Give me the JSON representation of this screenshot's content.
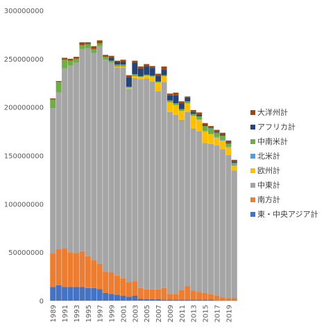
{
  "chart_data": {
    "type": "bar",
    "stacked": true,
    "title": "",
    "xlabel": "",
    "ylabel": "",
    "ylim": [
      0,
      300000000
    ],
    "yticks": [
      "0",
      "50000000",
      "100000000",
      "150000000",
      "200000000",
      "250000000",
      "300000000"
    ],
    "ytick_values": [
      0,
      50000000,
      100000000,
      150000000,
      200000000,
      250000000,
      300000000
    ],
    "grid": false,
    "legend_position": "right",
    "x": [
      1989,
      1990,
      1991,
      1992,
      1993,
      1994,
      1995,
      1996,
      1997,
      1998,
      1999,
      2000,
      2001,
      2002,
      2003,
      2004,
      2005,
      2006,
      2007,
      2008,
      2009,
      2010,
      2011,
      2012,
      2013,
      2014,
      2015,
      2016,
      2017,
      2018,
      2019,
      2020
    ],
    "xtick_labels": [
      "1989",
      "1991",
      "1993",
      "1995",
      "1997",
      "1999",
      "2001",
      "2003",
      "2005",
      "2007",
      "2009",
      "2011",
      "2013",
      "2015",
      "2017",
      "2019"
    ],
    "series": [
      {
        "name": "東・中央アジア計",
        "color": "#4472c4",
        "values": [
          14000000,
          16000000,
          14000000,
          14000000,
          14000000,
          14000000,
          13000000,
          13000000,
          12000000,
          8000000,
          7000000,
          6000000,
          5000000,
          4000000,
          5000000,
          2000000,
          1500000,
          1500000,
          1500000,
          1000000,
          1000000,
          1000000,
          1000000,
          1000000,
          1000000,
          1000000,
          1000000,
          1000000,
          500000,
          500000,
          500000,
          500000
        ]
      },
      {
        "name": "南方計",
        "color": "#ed7d31",
        "values": [
          35000000,
          37000000,
          40000000,
          36000000,
          35000000,
          37000000,
          33000000,
          29000000,
          26000000,
          22000000,
          22000000,
          20000000,
          18000000,
          15000000,
          15000000,
          11000000,
          10000000,
          10000000,
          10000000,
          12000000,
          6000000,
          6000000,
          10000000,
          14000000,
          9000000,
          8000000,
          7000000,
          6000000,
          5000000,
          3000000,
          2000000,
          2000000
        ]
      },
      {
        "name": "中東計",
        "color": "#a5a5a5",
        "values": [
          150000000,
          162000000,
          186000000,
          193000000,
          197000000,
          209000000,
          215000000,
          214000000,
          225000000,
          219000000,
          217000000,
          215000000,
          218000000,
          200000000,
          210000000,
          216000000,
          218000000,
          215000000,
          205000000,
          213000000,
          188000000,
          185000000,
          176000000,
          180000000,
          168000000,
          166000000,
          155000000,
          155000000,
          155000000,
          153000000,
          148000000,
          132000000
        ]
      },
      {
        "name": "欧州計",
        "color": "#ffc000",
        "values": [
          0,
          0,
          0,
          0,
          0,
          0,
          0,
          0,
          0,
          0,
          0,
          1000000,
          1000000,
          1000000,
          2000000,
          2000000,
          3000000,
          5000000,
          9000000,
          6000000,
          10000000,
          10000000,
          9000000,
          9000000,
          13000000,
          12000000,
          12000000,
          10000000,
          8000000,
          9000000,
          8000000,
          5000000
        ]
      },
      {
        "name": "北米計",
        "color": "#5b9bd5",
        "values": [
          0,
          0,
          0,
          0,
          0,
          0,
          0,
          0,
          0,
          0,
          0,
          0,
          0,
          0,
          0,
          0,
          0,
          0,
          0,
          0,
          0,
          0,
          0,
          0,
          0,
          500000,
          500000,
          500000,
          1000000,
          1000000,
          1000000,
          1000000
        ]
      },
      {
        "name": "中南米計",
        "color": "#70ad47",
        "values": [
          9000000,
          11000000,
          9000000,
          5000000,
          4000000,
          4000000,
          4000000,
          4000000,
          3000000,
          3000000,
          2000000,
          2000000,
          2000000,
          1000000,
          2000000,
          1000000,
          1000000,
          1000000,
          1000000,
          1000000,
          2000000,
          2000000,
          2000000,
          2000000,
          2000000,
          3000000,
          5000000,
          6000000,
          4000000,
          4000000,
          3000000,
          2000000
        ]
      },
      {
        "name": "アフリカ計",
        "color": "#264478",
        "values": [
          0,
          0,
          0,
          0,
          0,
          0,
          0,
          0,
          0,
          0,
          3000000,
          3000000,
          3000000,
          10000000,
          12000000,
          8000000,
          9000000,
          8000000,
          6000000,
          6000000,
          5000000,
          8000000,
          6000000,
          4000000,
          2000000,
          2000000,
          1000000,
          1000000,
          1000000,
          1000000,
          1000000,
          1000000
        ]
      },
      {
        "name": "大洋州計",
        "color": "#9e480e",
        "values": [
          1000000,
          1000000,
          2000000,
          2000000,
          2000000,
          3000000,
          2000000,
          3000000,
          3000000,
          2000000,
          2000000,
          1000000,
          2000000,
          2000000,
          2000000,
          2000000,
          2000000,
          2000000,
          2000000,
          3000000,
          2000000,
          3000000,
          2000000,
          1000000,
          2000000,
          2000000,
          2000000,
          1000000,
          2000000,
          2000000,
          2000000,
          2000000
        ]
      }
    ]
  }
}
